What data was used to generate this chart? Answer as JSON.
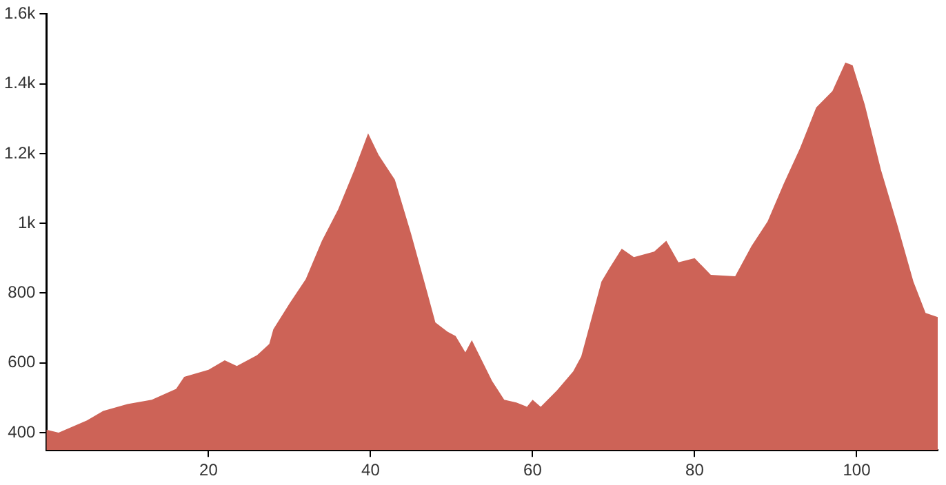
{
  "chart_data": {
    "type": "area",
    "x": [
      0,
      1.5,
      5,
      7,
      10,
      13,
      16,
      17,
      20,
      22,
      23.5,
      26,
      27.5,
      28,
      30,
      32,
      34,
      36,
      38,
      39.7,
      41,
      43,
      45,
      47,
      48,
      49.5,
      50.5,
      51.7,
      52.5,
      53.5,
      55,
      56.5,
      58,
      59.3,
      60,
      61,
      63,
      65,
      66,
      67.5,
      68.5,
      69.5,
      71,
      72.5,
      75,
      76.5,
      78,
      80,
      82,
      85,
      87,
      89,
      91,
      93,
      95,
      97,
      98.6,
      99.5,
      101,
      103,
      105,
      107,
      108.5,
      110
    ],
    "series": [
      {
        "color": "#cd6357",
        "values": [
          408,
          400,
          435,
          462,
          482,
          494,
          525,
          560,
          580,
          607,
          591,
          622,
          654,
          696,
          770,
          840,
          950,
          1040,
          1153,
          1258,
          1196,
          1125,
          970,
          802,
          716,
          689,
          677,
          630,
          665,
          618,
          548,
          494,
          486,
          474,
          494,
          474,
          521,
          575,
          618,
          747,
          833,
          872,
          927,
          903,
          919,
          950,
          888,
          900,
          852,
          848,
          934,
          1005,
          1114,
          1215,
          1332,
          1379,
          1461,
          1453,
          1340,
          1153,
          997,
          833,
          743,
          731
        ]
      }
    ],
    "xlim": [
      0,
      110
    ],
    "xticks": [
      20,
      40,
      60,
      80,
      100
    ],
    "ylim": [
      350,
      1600
    ],
    "yticks": [
      400,
      600,
      800,
      {
        "value": 1000,
        "label": "1k"
      },
      {
        "value": 1200,
        "label": "1.2k"
      },
      {
        "value": 1400,
        "label": "1.4k"
      },
      {
        "value": 1600,
        "label": "1.6k"
      }
    ],
    "grid": false,
    "legend": false
  }
}
